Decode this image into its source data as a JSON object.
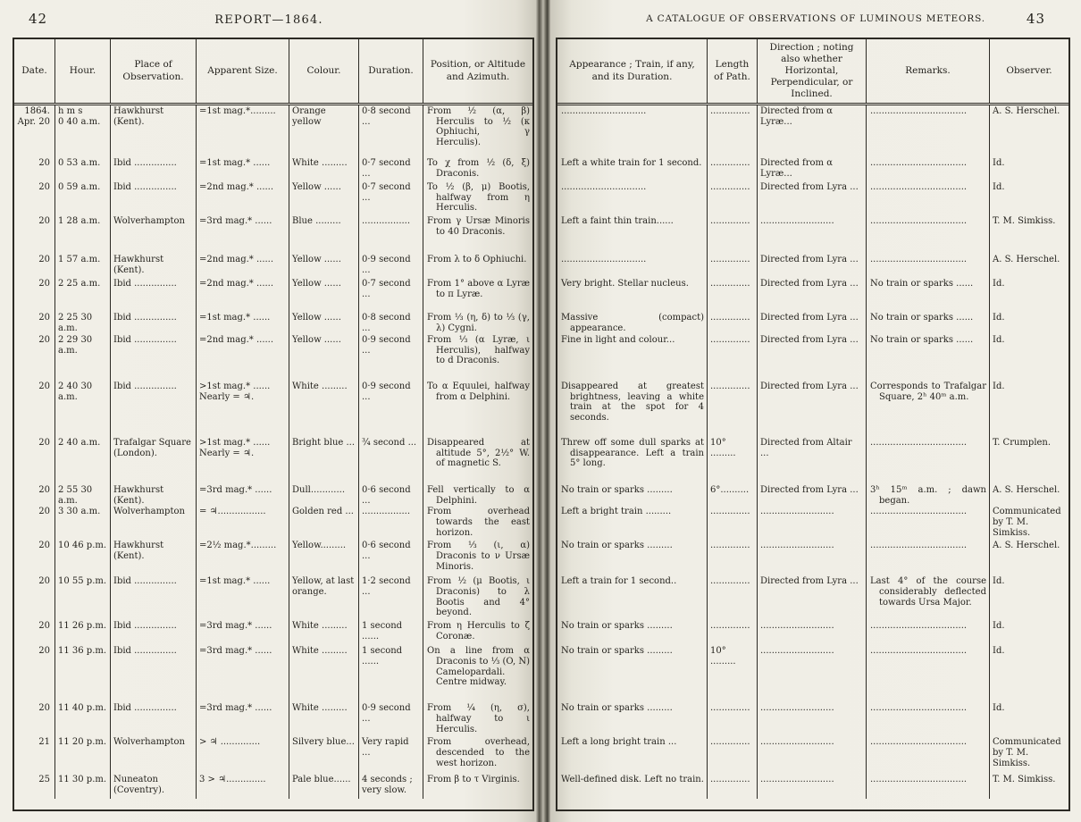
{
  "left_page": {
    "page_number": "42",
    "running_head": "REPORT—1864.",
    "columns": [
      "Date.",
      "Hour.",
      "Place of Observation.",
      "Apparent Size.",
      "Colour.",
      "Duration.",
      "Position, or Altitude and Azimuth."
    ],
    "rows": [
      {
        "date": "1864.\nApr. 20",
        "hour": "h  m  s\n0 40 a.m.",
        "place": "Hawkhurst\n(Kent).",
        "size": "=1st mag.*.........",
        "colour": "Orange yellow",
        "duration": "0·8 second ...",
        "position": "From ½ (α, β) Herculis to ½ (κ Ophiuchi, γ Herculis)."
      },
      {
        "date": "20",
        "hour": "0 53 a.m.",
        "place": "Ibid ...............",
        "size": "=1st mag.*  ......",
        "colour": "White .........",
        "duration": "0·7 second ...",
        "position": "To χ from ½ (δ, ξ) Draconis."
      },
      {
        "date": "20",
        "hour": "0 59 a.m.",
        "place": "Ibid ...............",
        "size": "=2nd mag.*  ......",
        "colour": "Yellow   ......",
        "duration": "0·7 second ...",
        "position": "To ½ (β, μ) Bootis, halfway from η Herculis."
      },
      {
        "date": "20",
        "hour": "1 28 a.m.",
        "place": "Wolverhampton",
        "size": "=3rd mag.*  ......",
        "colour": "Blue .........",
        "duration": ".................",
        "position": "From γ Ursæ Minoris to 40 Draconis."
      },
      {
        "date": "20",
        "hour": "1 57 a.m.",
        "place": "Hawkhurst\n(Kent).",
        "size": "=2nd mag.*  ......",
        "colour": "Yellow   ......",
        "duration": "0·9 second ...",
        "position": "From λ to δ Ophiuchi."
      },
      {
        "date": "20",
        "hour": "2 25 a.m.",
        "place": "Ibid ...............",
        "size": "=2nd mag.*  ......",
        "colour": "Yellow   ......",
        "duration": "0·7 second ...",
        "position": "From 1° above α Lyræ to π Lyræ."
      },
      {
        "date": "20",
        "hour": "2 25 30\na.m.",
        "place": "Ibid ...............",
        "size": "=1st mag.*  ......",
        "colour": "Yellow   ......",
        "duration": "0·8 second ...",
        "position": "From ⅓ (η, δ) to ⅓ (γ, λ) Cygni."
      },
      {
        "date": "20",
        "hour": "2 29 30\na.m.",
        "place": "Ibid ...............",
        "size": "=2nd mag.*  ......",
        "colour": "Yellow   ......",
        "duration": "0·9 second ...",
        "position": "From ⅓ (α Lyræ, ι Herculis), halfway to d Draconis."
      },
      {
        "date": "20",
        "hour": "2 40 30\na.m.",
        "place": "Ibid ...............",
        "size": ">1st mag.*  ......\nNearly = ♃.",
        "colour": "White .........",
        "duration": "0·9 second ...",
        "position": "To α Equulei, halfway from α Delphini."
      },
      {
        "date": "20",
        "hour": "2 40 a.m.",
        "place": "Trafalgar Square\n(London).",
        "size": ">1st mag.*  ......\nNearly = ♃.",
        "colour": "Bright blue ...",
        "duration": "¾ second   ...",
        "position": "Disappeared at altitude 5°, 2½° W. of magnetic S."
      },
      {
        "date": "20",
        "hour": "2 55 30\na.m.",
        "place": "Hawkhurst\n(Kent).",
        "size": "=3rd mag.*  ......",
        "colour": "Dull............",
        "duration": "0·6 second ...",
        "position": "Fell vertically to α Delphini."
      },
      {
        "date": "20",
        "hour": "3 30 a.m.",
        "place": "Wolverhampton",
        "size": "= ♃.................",
        "colour": "Golden red ...",
        "duration": ".................",
        "position": "From overhead towards the east horizon."
      },
      {
        "date": "20",
        "hour": "10 46 p.m.",
        "place": "Hawkhurst\n(Kent).",
        "size": "=2½ mag.*.........",
        "colour": "Yellow.........",
        "duration": "0·6 second ...",
        "position": "From ⅓ (ι, α) Draconis to ν Ursæ Minoris."
      },
      {
        "date": "20",
        "hour": "10 55 p.m.",
        "place": "Ibid ...............",
        "size": "=1st mag.*  ......",
        "colour": "Yellow, at last orange.",
        "duration": "1·2 second ...",
        "position": "From ½ (μ Bootis, ι Draconis) to λ Bootis and 4° beyond."
      },
      {
        "date": "20",
        "hour": "11 26 p.m.",
        "place": "Ibid ...............",
        "size": "=3rd mag.*  ......",
        "colour": "White .........",
        "duration": "1 second ......",
        "position": "From η Herculis to ζ Coronæ."
      },
      {
        "date": "20",
        "hour": "11 36 p.m.",
        "place": "Ibid ...............",
        "size": "=3rd mag.*  ......",
        "colour": "White .........",
        "duration": "1 second ......",
        "position": "On a line from α Draconis to ⅓ (O, N) Camelopardali. Centre midway."
      },
      {
        "date": "20",
        "hour": "11 40 p.m.",
        "place": "Ibid ...............",
        "size": "=3rd mag.*  ......",
        "colour": "White .........",
        "duration": "0·9 second ...",
        "position": "From ¼ (η, σ), halfway to ι Herculis."
      },
      {
        "date": "21",
        "hour": "11 20 p.m.",
        "place": "Wolverhampton",
        "size": "> ♃  ..............",
        "colour": "Silvery blue...",
        "duration": "Very rapid ...",
        "position": "From overhead, descended to the west horizon."
      },
      {
        "date": "25",
        "hour": "11 30 p.m.",
        "place": "Nuneaton\n(Coventry).",
        "size": "3 > ♃..............",
        "colour": "Pale blue......",
        "duration": "4 seconds ;\nvery slow.",
        "position": "From β to τ Virginis."
      }
    ]
  },
  "right_page": {
    "page_number": "43",
    "running_head": "A CATALOGUE OF OBSERVATIONS OF LUMINOUS METEORS.",
    "columns": [
      "Appearance ;  Train, if any, and its Duration.",
      "Length of Path.",
      "Direction ;  noting also whether Horizontal, Perpendicular, or Inclined.",
      "Remarks.",
      "Observer."
    ],
    "rows": [
      {
        "appearance": "..............................",
        "length": "..............",
        "direction": "Directed from α Lyræ...",
        "remarks": "..................................",
        "observer": "A. S. Herschel."
      },
      {
        "appearance": "Left a white train for 1 second.",
        "length": "..............",
        "direction": "Directed from α Lyræ...",
        "remarks": "..................................",
        "observer": "Id."
      },
      {
        "appearance": "..............................",
        "length": "..............",
        "direction": "Directed from Lyra ...",
        "remarks": "..................................",
        "observer": "Id."
      },
      {
        "appearance": "Left a faint thin train......",
        "length": "..............",
        "direction": "..........................",
        "remarks": "..................................",
        "observer": "T. M. Simkiss."
      },
      {
        "appearance": "..............................",
        "length": "..............",
        "direction": "Directed from Lyra ...",
        "remarks": "..................................",
        "observer": "A. S. Herschel."
      },
      {
        "appearance": "Very bright. Stellar nucleus.",
        "length": "..............",
        "direction": "Directed from Lyra ...",
        "remarks": "No train or sparks ......",
        "observer": "Id."
      },
      {
        "appearance": "Massive (compact) appearance.",
        "length": "..............",
        "direction": "Directed from Lyra ...",
        "remarks": "No train or sparks ......",
        "observer": "Id."
      },
      {
        "appearance": "Fine in light and colour...",
        "length": "..............",
        "direction": "Directed from Lyra ...",
        "remarks": "No train or sparks ......",
        "observer": "Id."
      },
      {
        "appearance": "Disappeared at greatest brightness, leaving a white train at the spot for 4 seconds.",
        "length": "..............",
        "direction": "Directed from Lyra ...",
        "remarks": "Corresponds to Trafalgar Square, 2ʰ 40ᵐ a.m.",
        "observer": "Id."
      },
      {
        "appearance": "Threw off some dull sparks at disappearance. Left a train 5° long.",
        "length": "10° .........",
        "direction": "Directed from Altair ...",
        "remarks": "..................................",
        "observer": "T. Crumplen."
      },
      {
        "appearance": "No train or sparks .........",
        "length": "6°..........",
        "direction": "Directed from Lyra ...",
        "remarks": "3ʰ 15ᵐ a.m. ;  dawn began.",
        "observer": "A. S. Herschel."
      },
      {
        "appearance": "Left a bright train .........",
        "length": "..............",
        "direction": "..........................",
        "remarks": "..................................",
        "observer": "Communicated by T. M. Simkiss."
      },
      {
        "appearance": "No train or sparks .........",
        "length": "..............",
        "direction": "..........................",
        "remarks": "..................................",
        "observer": "A. S. Herschel."
      },
      {
        "appearance": "Left a train for 1 second..",
        "length": "..............",
        "direction": "Directed from Lyra ...",
        "remarks": "Last 4° of the course considerably deflected towards Ursa Major.",
        "observer": "Id."
      },
      {
        "appearance": "No train or sparks .........",
        "length": "..............",
        "direction": "..........................",
        "remarks": "..................................",
        "observer": "Id."
      },
      {
        "appearance": "No train or sparks .........",
        "length": "10° .........",
        "direction": "..........................",
        "remarks": "..................................",
        "observer": "Id."
      },
      {
        "appearance": "No train or sparks .........",
        "length": "..............",
        "direction": "..........................",
        "remarks": "..................................",
        "observer": "Id."
      },
      {
        "appearance": "Left a long bright train ...",
        "length": "..............",
        "direction": "..........................",
        "remarks": "..................................",
        "observer": "Communicated by T. M. Simkiss."
      },
      {
        "appearance": "Well-defined disk. Left no train.",
        "length": "..............",
        "direction": "..........................",
        "remarks": "..................................",
        "observer": "T. M. Simkiss."
      }
    ]
  }
}
